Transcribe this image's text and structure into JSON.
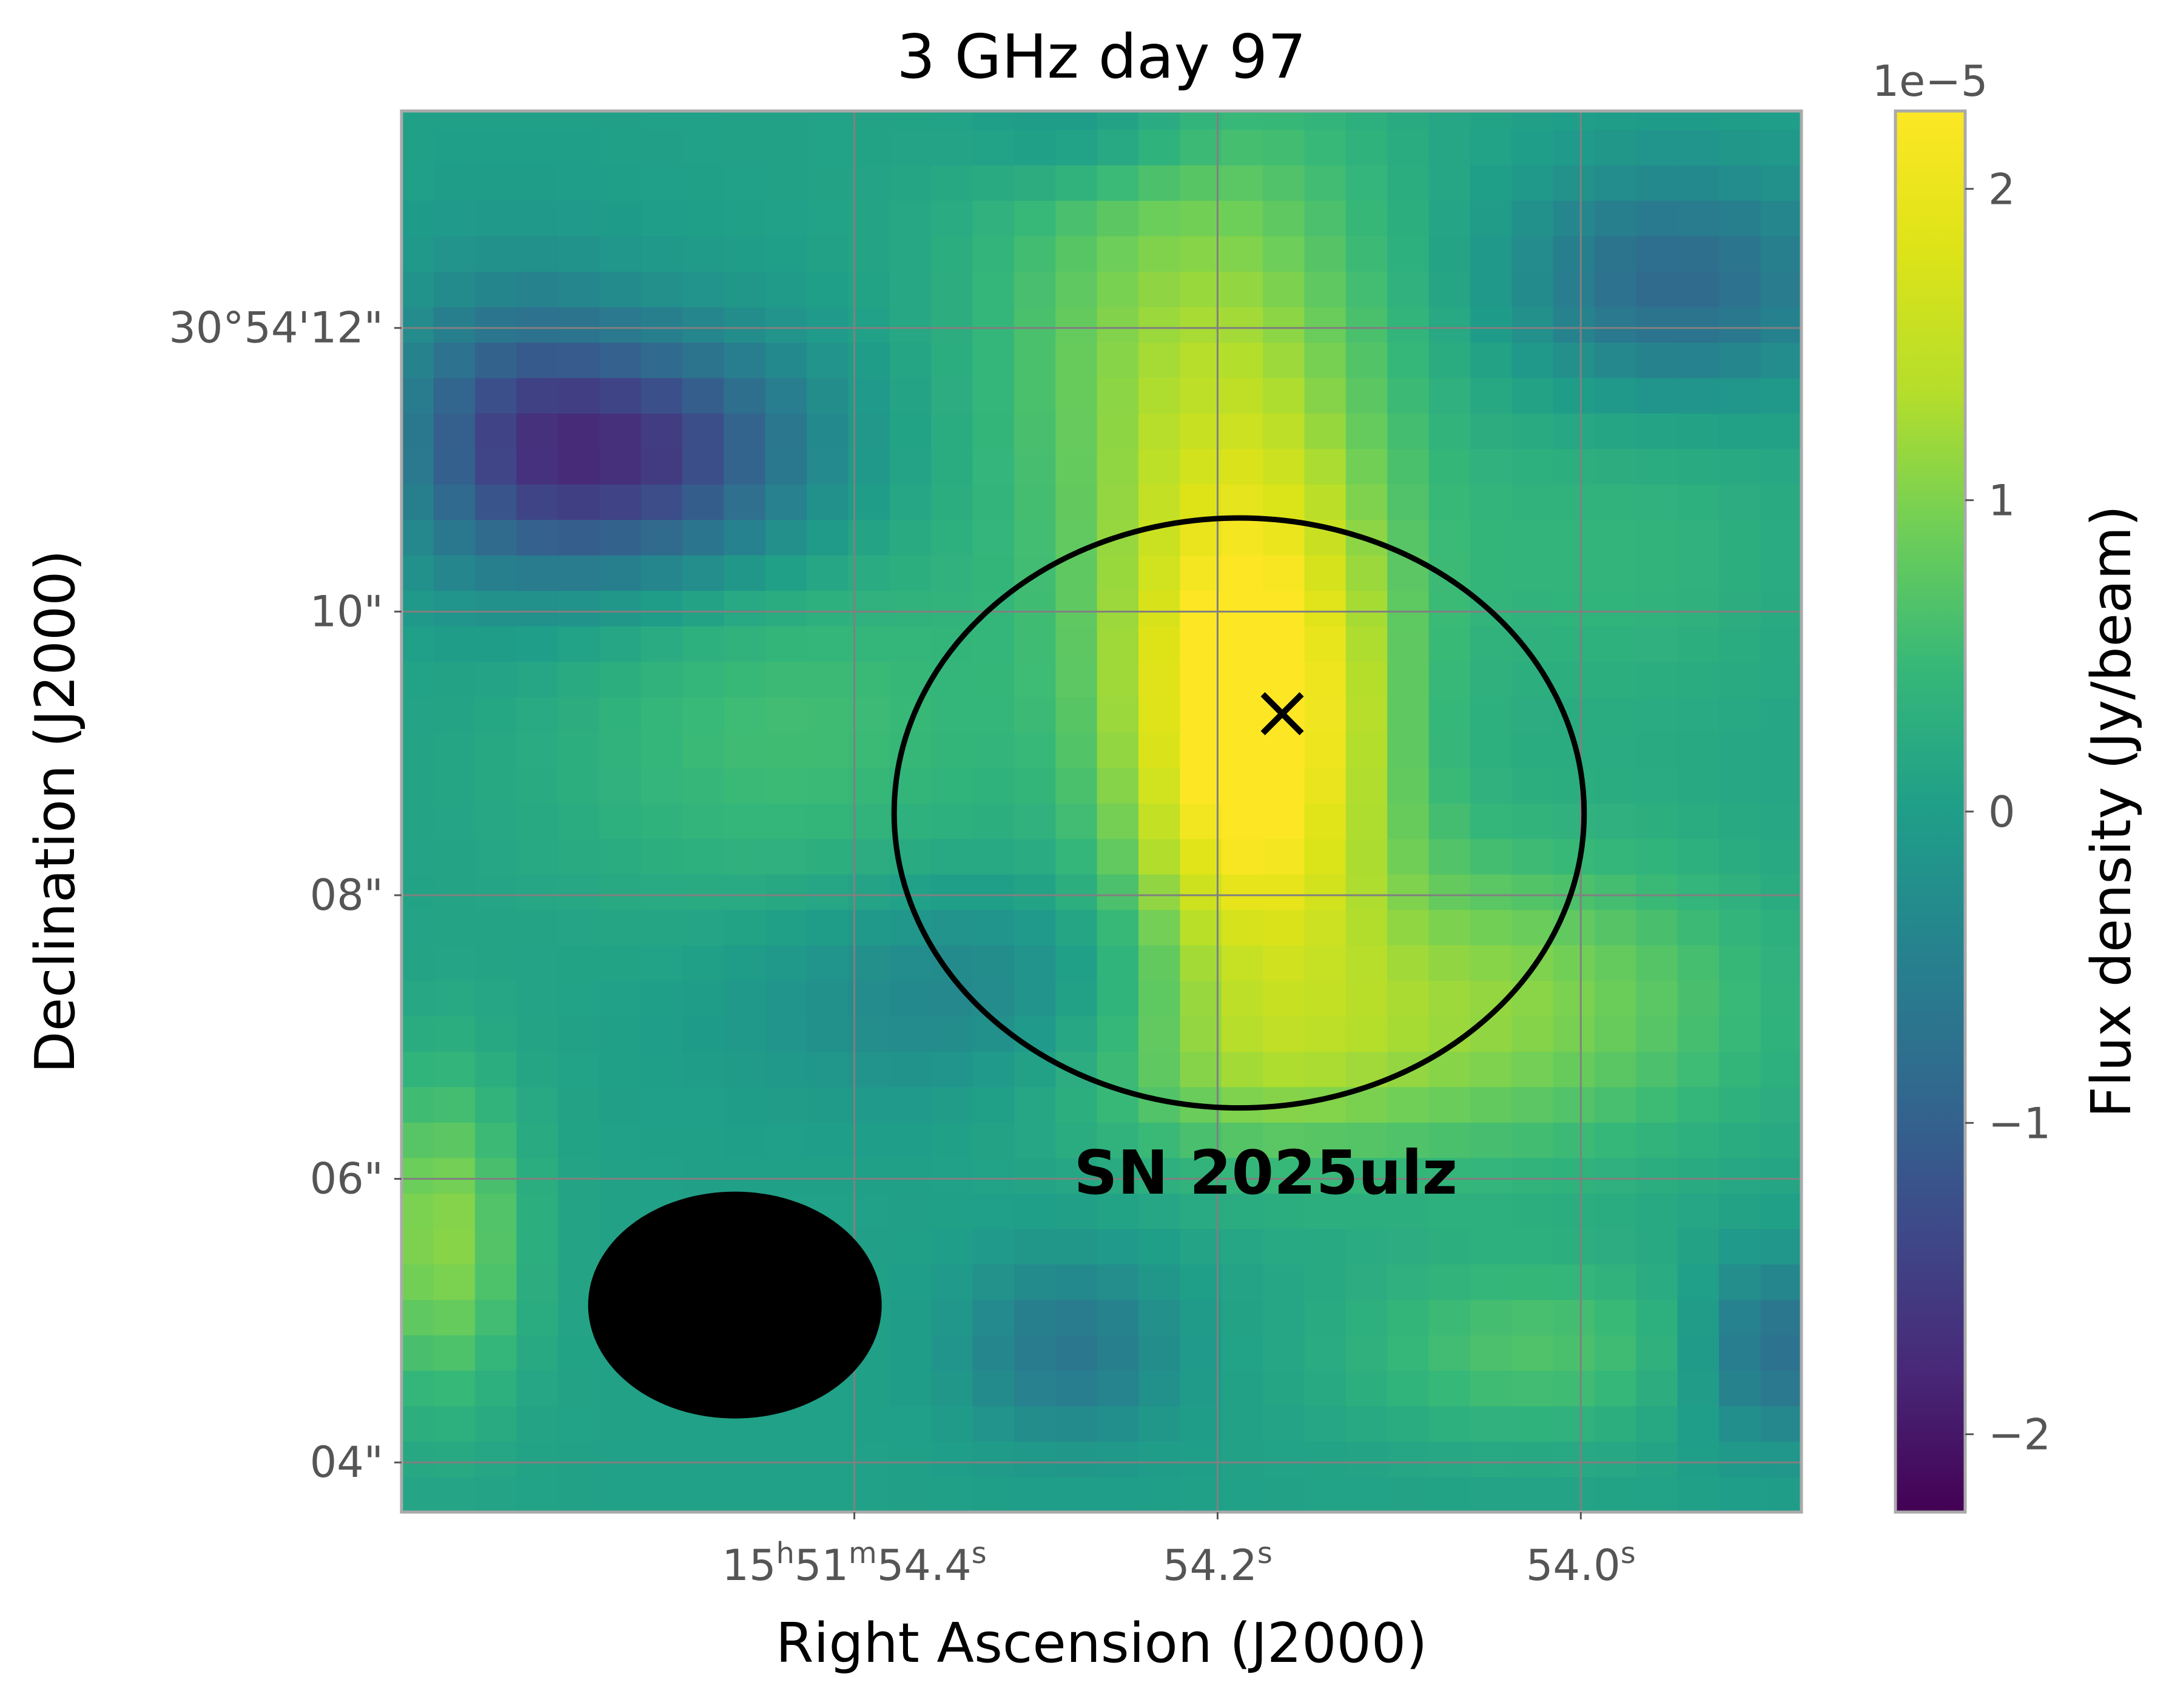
{
  "chart_data": {
    "type": "heatmap",
    "title": "3 GHz day 97",
    "xlabel": "Right Ascension (J2000)",
    "ylabel": "Declination (J2000)",
    "grid": true,
    "colormap": "viridis",
    "x_units": "arcsec offset east (+) of RA tick 54.2s",
    "y_units": "arcsec offset of Dec from 30°54'00\"",
    "xlim": [
      4.92,
      -3.52
    ],
    "ylim": [
      3.65,
      13.53
    ],
    "x_ticks": [
      {
        "value": 2.19,
        "label_parts": [
          [
            "15",
            false
          ],
          [
            "h",
            true
          ],
          [
            "51",
            false
          ],
          [
            "m",
            true
          ],
          [
            "54.4",
            false
          ],
          [
            "s",
            true
          ]
        ]
      },
      {
        "value": 0.0,
        "label_parts": [
          [
            "54.2",
            false
          ],
          [
            "s",
            true
          ]
        ]
      },
      {
        "value": -2.19,
        "label_parts": [
          [
            "54.0",
            false
          ],
          [
            "s",
            true
          ]
        ]
      }
    ],
    "y_ticks": [
      {
        "value": 12,
        "label": "30°54'12\""
      },
      {
        "value": 10,
        "label": "10\""
      },
      {
        "value": 8,
        "label": "08\""
      },
      {
        "value": 6,
        "label": "06\""
      },
      {
        "value": 4,
        "label": "04\""
      }
    ],
    "colorbar": {
      "label": "Flux density (Jy/beam)",
      "offset_label": "1e−5",
      "vmin": -2.25,
      "vmax": 2.25,
      "ticks": [
        {
          "value": 2,
          "label": "2"
        },
        {
          "value": 1,
          "label": "1"
        },
        {
          "value": 0,
          "label": "0"
        },
        {
          "value": -1,
          "label": "−1"
        },
        {
          "value": -2,
          "label": "−2"
        }
      ]
    },
    "pixel_scale_arcsec": 0.25,
    "sources": [
      {
        "x": -0.2,
        "y": 9.2,
        "amp": 2.55,
        "sx": 0.55,
        "sy": 1.25
      },
      {
        "x": 0.15,
        "y": 11.9,
        "amp": 1.05,
        "sx": 0.85,
        "sy": 1.4
      },
      {
        "x": -1.65,
        "y": 7.25,
        "amp": 1.0,
        "sx": 1.15,
        "sy": 0.8
      },
      {
        "x": 0.0,
        "y": 6.8,
        "amp": 0.55,
        "sx": 0.9,
        "sy": 0.5
      },
      {
        "x": 3.5,
        "y": 11.1,
        "amp": -1.6,
        "sx": 0.75,
        "sy": 0.6
      },
      {
        "x": 4.3,
        "y": 11.3,
        "amp": -0.7,
        "sx": 0.5,
        "sy": 0.8
      },
      {
        "x": -2.75,
        "y": 12.3,
        "amp": -0.95,
        "sx": 0.7,
        "sy": 0.55
      },
      {
        "x": 1.45,
        "y": 7.3,
        "amp": -0.55,
        "sx": 1.0,
        "sy": 0.55
      },
      {
        "x": 4.7,
        "y": 5.6,
        "amp": 1.05,
        "sx": 0.35,
        "sy": 0.8
      },
      {
        "x": 2.6,
        "y": 9.2,
        "amp": 0.5,
        "sx": 1.1,
        "sy": 1.0
      },
      {
        "x": -1.9,
        "y": 4.8,
        "amp": 0.6,
        "sx": 0.8,
        "sy": 0.45
      },
      {
        "x": -3.35,
        "y": 4.8,
        "amp": -0.9,
        "sx": 0.35,
        "sy": 0.45
      },
      {
        "x": 0.9,
        "y": 4.8,
        "amp": -0.7,
        "sx": 0.45,
        "sy": 0.45
      },
      {
        "x": 0.75,
        "y": 13.4,
        "amp": -0.5,
        "sx": 0.5,
        "sy": 0.3
      },
      {
        "x": -2.4,
        "y": 10.4,
        "amp": 0.35,
        "sx": 0.9,
        "sy": 0.9
      }
    ],
    "background_level": 0.05,
    "annotations": {
      "circle": {
        "center_x": -0.13,
        "center_y": 8.58,
        "radius_arcsec": 2.08
      },
      "marker": {
        "symbol": "x",
        "x": -0.39,
        "y": 9.28
      },
      "source_label": {
        "text": "SN 2025ulz",
        "x": -0.29,
        "y": 6.04
      },
      "beam": {
        "center_x": 2.91,
        "center_y": 5.11,
        "major_arcsec": 1.77,
        "minor_arcsec": 1.6
      }
    }
  }
}
